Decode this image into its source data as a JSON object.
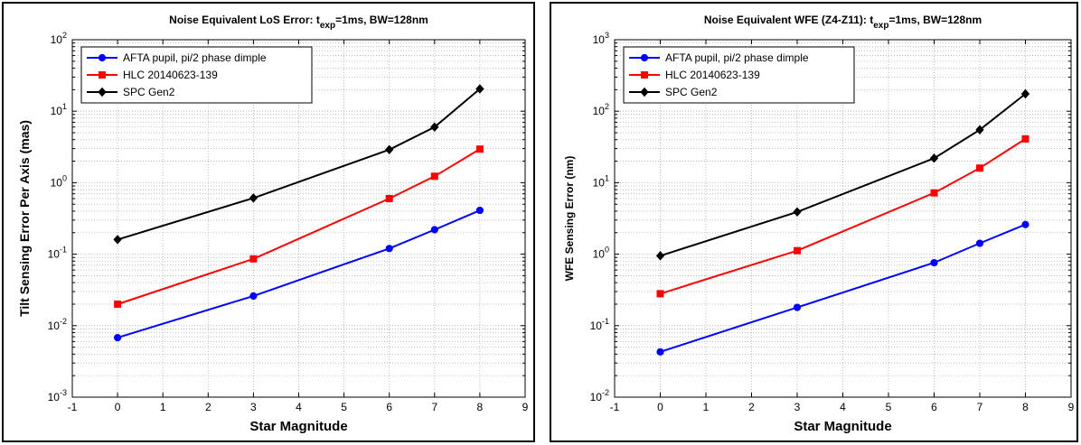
{
  "chart_data": [
    {
      "type": "line",
      "title_main": "Noise Equivalent LoS Error: t",
      "title_sub": "exp",
      "title_rest": "=1ms, BW=128nm",
      "xlabel": "Star Magnitude",
      "ylabel": "Tilt Sensing Error Per Axis (mas)",
      "xlim": [
        -1,
        9
      ],
      "ylim_exp": [
        -3,
        2
      ],
      "log_y": true,
      "grid": true,
      "legend_position": "top-left",
      "x_ticks": [
        "-1",
        "0",
        "1",
        "2",
        "3",
        "4",
        "5",
        "6",
        "7",
        "8",
        "9"
      ],
      "y_ticks": [
        {
          "base": "10",
          "exp": "-3"
        },
        {
          "base": "10",
          "exp": "-2"
        },
        {
          "base": "10",
          "exp": "-1"
        },
        {
          "base": "10",
          "exp": "0"
        },
        {
          "base": "10",
          "exp": "1"
        },
        {
          "base": "10",
          "exp": "2"
        }
      ],
      "series": [
        {
          "name": "AFTA pupil, pi/2 phase dimple",
          "color": "#0000ff",
          "marker": "circle",
          "x": [
            0,
            3,
            6,
            7,
            8
          ],
          "y": [
            0.0068,
            0.026,
            0.12,
            0.22,
            0.41
          ]
        },
        {
          "name": "HLC 20140623-139",
          "color": "#ff0000",
          "marker": "square",
          "x": [
            0,
            3,
            6,
            7,
            8
          ],
          "y": [
            0.02,
            0.086,
            0.6,
            1.23,
            2.95
          ]
        },
        {
          "name": "SPC Gen2",
          "color": "#000000",
          "marker": "diamond",
          "x": [
            0,
            3,
            6,
            7,
            8
          ],
          "y": [
            0.16,
            0.61,
            2.9,
            6.0,
            20.5
          ]
        }
      ]
    },
    {
      "type": "line",
      "title_main": "Noise Equivalent WFE (Z4-Z11): t",
      "title_sub": "exp",
      "title_rest": "=1ms,  BW=128nm",
      "xlabel": "Star Magnitude",
      "ylabel": "WFE Sensing Error (nm)",
      "xlim": [
        -1,
        9
      ],
      "ylim_exp": [
        -2,
        3
      ],
      "log_y": true,
      "grid": true,
      "legend_position": "top-left",
      "x_ticks": [
        "-1",
        "0",
        "1",
        "2",
        "3",
        "4",
        "5",
        "6",
        "7",
        "8",
        "9"
      ],
      "y_ticks": [
        {
          "base": "10",
          "exp": "-2"
        },
        {
          "base": "10",
          "exp": "-1"
        },
        {
          "base": "10",
          "exp": "0"
        },
        {
          "base": "10",
          "exp": "1"
        },
        {
          "base": "10",
          "exp": "2"
        },
        {
          "base": "10",
          "exp": "3"
        }
      ],
      "series": [
        {
          "name": "AFTA pupil, pi/2 phase dimple",
          "color": "#0000ff",
          "marker": "circle",
          "x": [
            0,
            3,
            6,
            7,
            8
          ],
          "y": [
            0.043,
            0.18,
            0.76,
            1.42,
            2.6
          ]
        },
        {
          "name": "HLC 20140623-139",
          "color": "#ff0000",
          "marker": "square",
          "x": [
            0,
            3,
            6,
            7,
            8
          ],
          "y": [
            0.28,
            1.12,
            7.2,
            16.0,
            41.0
          ]
        },
        {
          "name": "SPC Gen2",
          "color": "#000000",
          "marker": "diamond",
          "x": [
            0,
            3,
            6,
            7,
            8
          ],
          "y": [
            0.95,
            3.9,
            22.0,
            55.0,
            175.0
          ]
        }
      ]
    }
  ]
}
